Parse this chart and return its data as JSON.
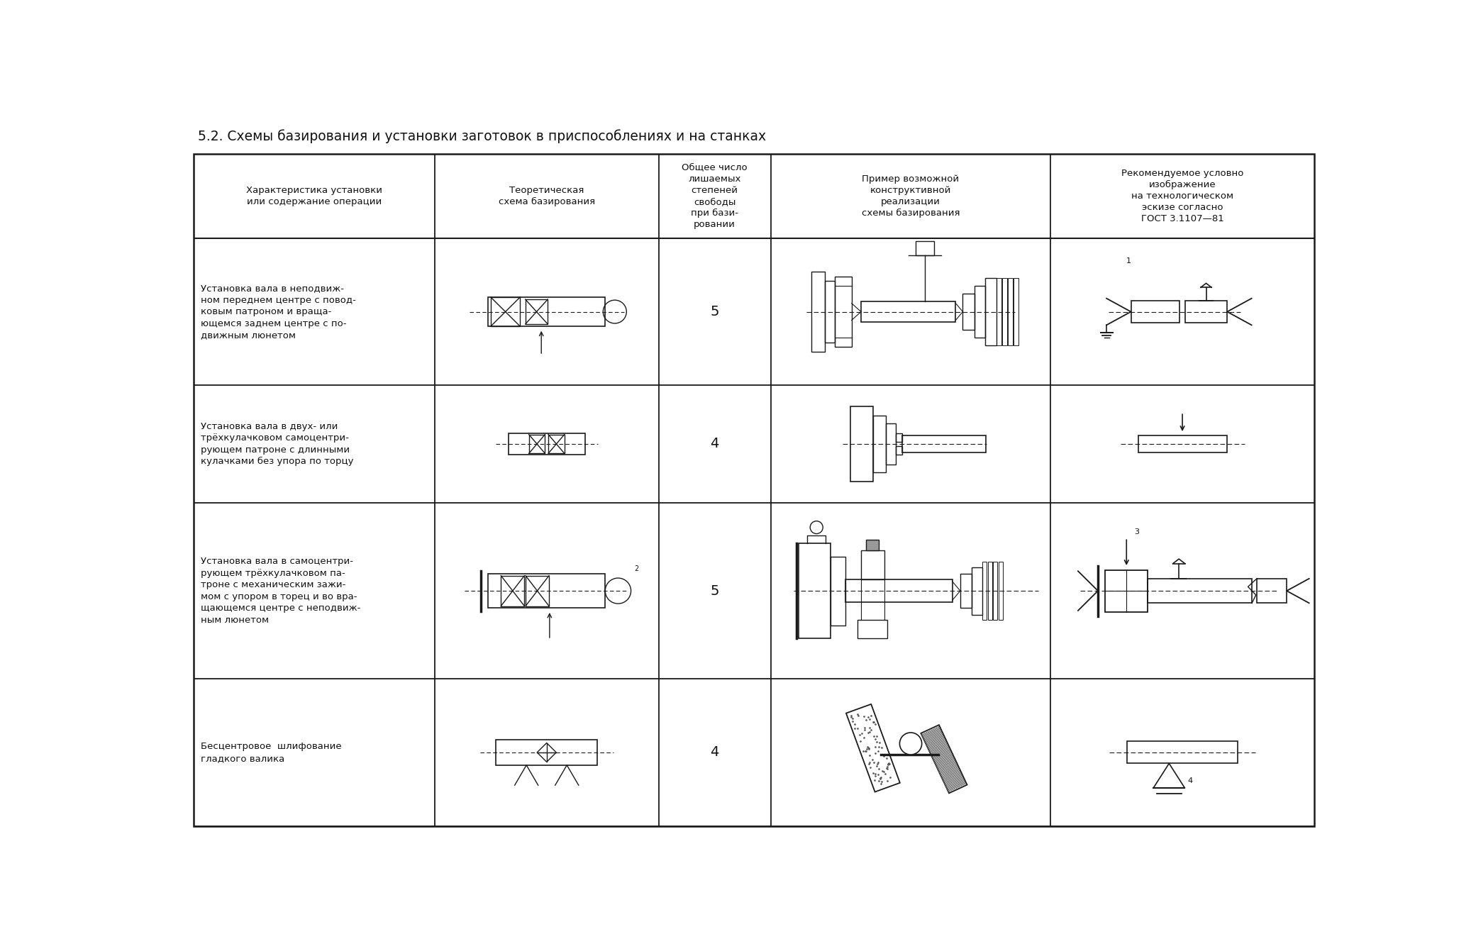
{
  "title": "5.2. Схемы базирования и установки заготовок в приспособлениях и на станках",
  "col_headers": [
    "Характеристика установки\nили содержание операции",
    "Теоретическая\nсхема базирования",
    "Общее число\nлишаемых\nстепеней\nсвободы\nпри бази-\nровании",
    "Пример возможной\nконструктивной\nреализации\nсхемы базирования",
    "Рекомендуемое условно\nизображение\nна технологическом\nэскизе согласно\nГОСТ 3.1107—81"
  ],
  "rows": [
    {
      "text": "Установка вала в неподвиж-\nном переднем центре с повод-\nковым патроном и враща-\nющемся заднем центре с по-\nдвижным люнетом",
      "number": "5"
    },
    {
      "text": "Установка вала в двух- или\nтрёхкулачковом самоцентри-\nрующем патроне с длинными\nкулачками без упора по торцу",
      "number": "4"
    },
    {
      "text": "Установка вала в самоцентри-\nрующем трёхкулачковом па-\nтроне с механическим зажи-\nмом с упором в торец и во вра-\nщающемся центре с неподвиж-\nным люнетом",
      "number": "5"
    },
    {
      "text": "Бесцентровое  шлифование\nгладкого валика",
      "number": "4"
    }
  ],
  "line_color": "#1a1a1a",
  "text_color": "#111111",
  "title_color": "#111111"
}
